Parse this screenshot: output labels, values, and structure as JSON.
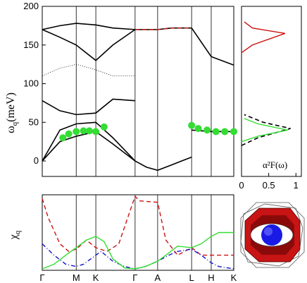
{
  "chart_data": [
    {
      "type": "line",
      "panel": "phonon-dispersion",
      "ylabel_main": "ω",
      "ylabel_sub": "q",
      "ylabel_unit": "(meV)",
      "ylim": [
        -20,
        200
      ],
      "yticks": [
        "0",
        "50",
        "100",
        "150",
        "200"
      ],
      "ytick_values": [
        0,
        50,
        100,
        150,
        200
      ],
      "kpath": [
        "Γ",
        "M",
        "K",
        "Γ",
        "A",
        "L",
        "H",
        "K"
      ],
      "kpos": [
        0.0,
        0.577,
        0.91,
        1.577,
        1.96,
        2.537,
        2.87,
        3.253
      ],
      "series": [
        {
          "style": "black-solid",
          "x": [
            0,
            0.3,
            0.577,
            0.91,
            1.2,
            1.577
          ],
          "y": [
            0,
            40,
            48,
            50,
            30,
            0
          ]
        },
        {
          "style": "black-solid",
          "x": [
            0,
            0.3,
            0.577,
            0.91,
            1.2,
            1.577
          ],
          "y": [
            0,
            25,
            32,
            38,
            22,
            0
          ]
        },
        {
          "style": "black-solid",
          "x": [
            0,
            0.3,
            0.577,
            0.91,
            1.2,
            1.577
          ],
          "y": [
            78,
            65,
            60,
            62,
            80,
            78
          ]
        },
        {
          "style": "black-solid",
          "x": [
            0,
            0.3,
            0.577,
            0.91,
            1.2,
            1.577
          ],
          "y": [
            170,
            160,
            150,
            130,
            150,
            170
          ]
        },
        {
          "style": "black-solid",
          "x": [
            0,
            0.3,
            0.577,
            0.91,
            1.2,
            1.577
          ],
          "y": [
            170,
            175,
            178,
            176,
            172,
            170
          ]
        },
        {
          "style": "black-dotted",
          "x": [
            0,
            0.3,
            0.577,
            0.91,
            1.2,
            1.577
          ],
          "y": [
            110,
            120,
            125,
            118,
            110,
            110
          ]
        },
        {
          "style": "black-solid",
          "x": [
            1.577,
            1.77,
            1.96,
            2.2,
            2.537
          ],
          "y": [
            0,
            -8,
            -12,
            -5,
            5
          ]
        },
        {
          "style": "black-solid",
          "x": [
            1.577,
            1.77,
            1.96,
            2.2,
            2.537,
            2.87,
            3.253
          ],
          "y": [
            170,
            170,
            170,
            172,
            172,
            135,
            124
          ]
        },
        {
          "style": "black-solid",
          "x": [
            2.537,
            2.87,
            3.253
          ],
          "y": [
            40,
            38,
            38
          ]
        },
        {
          "style": "red-dashed",
          "x": [
            1.577,
            1.77,
            1.96,
            2.2,
            2.537
          ],
          "y": [
            170,
            170,
            170,
            172,
            172
          ]
        }
      ],
      "green_markers": {
        "x": [
          0.35,
          0.45,
          0.577,
          0.7,
          0.8,
          0.91,
          1.05,
          2.537,
          2.65,
          2.8,
          2.95,
          3.1,
          3.253
        ],
        "y": [
          30,
          35,
          38,
          39,
          39,
          38,
          44,
          46,
          42,
          40,
          38,
          38,
          38
        ]
      }
    },
    {
      "type": "line",
      "panel": "eliashberg",
      "annotation": "α²F(ω)",
      "xlim": [
        0,
        1.1
      ],
      "xticks": [
        "0",
        "0.5",
        "1"
      ],
      "xtick_values": [
        0,
        0.5,
        1
      ],
      "ylim": [
        -20,
        200
      ],
      "series": [
        {
          "style": "red-solid",
          "x": [
            0,
            0.2,
            0.8,
            0.2,
            0.05
          ],
          "y": [
            140,
            150,
            165,
            172,
            180
          ]
        },
        {
          "style": "black-dashed",
          "x": [
            0,
            0.3,
            0.9,
            0.4,
            0.05
          ],
          "y": [
            20,
            30,
            42,
            50,
            60
          ]
        },
        {
          "style": "green-solid",
          "x": [
            0,
            0.3,
            0.85,
            0.3,
            0.05
          ],
          "y": [
            25,
            32,
            40,
            48,
            55
          ]
        }
      ]
    },
    {
      "type": "line",
      "panel": "nesting",
      "ylabel_main": "χ",
      "ylabel_sub": "q",
      "kpath": [
        "Γ",
        "M",
        "K",
        "Γ",
        "A",
        "L",
        "H",
        "K"
      ],
      "kpos": [
        0.0,
        0.577,
        0.91,
        1.577,
        1.96,
        2.537,
        2.87,
        3.253
      ],
      "ylim": [
        0,
        1
      ],
      "series": [
        {
          "style": "red-dashed",
          "x": [
            0,
            0.1,
            0.3,
            0.45,
            0.577,
            0.75,
            0.91,
            1.1,
            1.3,
            1.577,
            1.65,
            1.96,
            2.1,
            2.3,
            2.537,
            2.7,
            2.87,
            3.0,
            3.253
          ],
          "y": [
            0.95,
            0.7,
            0.35,
            0.25,
            0.28,
            0.4,
            0.3,
            0.25,
            0.35,
            0.98,
            0.92,
            0.9,
            0.4,
            0.2,
            0.3,
            0.2,
            0.2,
            0.2,
            0.2
          ]
        },
        {
          "style": "blue-dashdot",
          "x": [
            0,
            0.2,
            0.4,
            0.577,
            0.7,
            0.91,
            1.0,
            1.2,
            1.4,
            1.577,
            1.75,
            1.96,
            2.15,
            2.3,
            2.537,
            2.7,
            2.87,
            3.0,
            3.253
          ],
          "y": [
            0.35,
            0.2,
            0.08,
            0.05,
            0.08,
            0.2,
            0.25,
            0.12,
            0.05,
            0.02,
            0.05,
            0.12,
            0.2,
            0.25,
            0.28,
            0.2,
            0.1,
            0.05,
            0.02
          ]
        },
        {
          "style": "green-solid",
          "x": [
            0,
            0.2,
            0.4,
            0.577,
            0.75,
            0.91,
            1.05,
            1.2,
            1.4,
            1.577,
            1.75,
            1.96,
            2.1,
            2.3,
            2.537,
            2.7,
            2.87,
            3.0,
            3.253
          ],
          "y": [
            0.02,
            0.08,
            0.2,
            0.3,
            0.4,
            0.45,
            0.38,
            0.15,
            0.03,
            0.02,
            0.05,
            0.12,
            0.2,
            0.32,
            0.3,
            0.35,
            0.45,
            0.5,
            0.5
          ]
        }
      ]
    }
  ],
  "colors": {
    "green": "#33dd33",
    "red": "#cc1111",
    "blue": "#1111cc",
    "fermi_surface_red": "#c81414",
    "fermi_surface_blue": "#1a1ae6"
  },
  "inset": {
    "icon": "fermi-surface-icon"
  }
}
